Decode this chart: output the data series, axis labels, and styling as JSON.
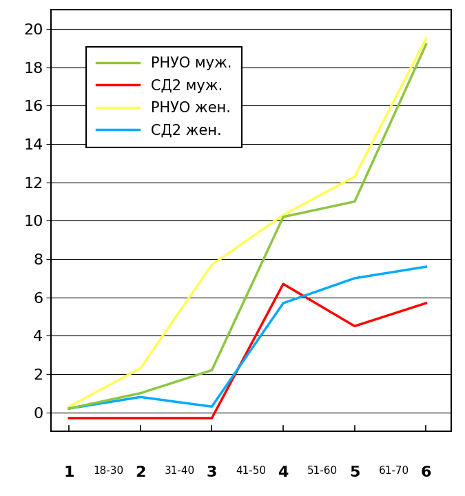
{
  "x": [
    1,
    2,
    3,
    4,
    5,
    6
  ],
  "rnuo_muz": [
    0.2,
    1.0,
    2.2,
    10.2,
    11.0,
    19.2
  ],
  "sd2_muz": [
    -0.3,
    -0.3,
    -0.3,
    6.7,
    4.5,
    5.7
  ],
  "rnuo_zhen": [
    0.3,
    2.3,
    7.7,
    10.3,
    12.3,
    19.5
  ],
  "sd2_zhen": [
    0.2,
    0.8,
    0.3,
    5.7,
    7.0,
    7.6
  ],
  "colors": {
    "rnuo_muz": "#8DC63F",
    "sd2_muz": "#FF0000",
    "rnuo_zhen": "#FFFF55",
    "sd2_zhen": "#00AAFF"
  },
  "legend_labels": [
    "РНУО муж.",
    "СД2 муж.",
    "РНУО жен.",
    "СД2 жен."
  ],
  "x_major_ticks": [
    1,
    2,
    3,
    4,
    5,
    6
  ],
  "x_between_labels": [
    [
      1.5,
      "18-30"
    ],
    [
      2.5,
      "31-40"
    ],
    [
      3.5,
      "41-50"
    ],
    [
      4.5,
      "51-60"
    ],
    [
      5.5,
      "61-70"
    ]
  ],
  "ylim": [
    -1,
    21
  ],
  "yticks": [
    0,
    2,
    4,
    6,
    8,
    10,
    12,
    14,
    16,
    18,
    20
  ],
  "xlim": [
    0.75,
    6.35
  ],
  "linewidth": 2.5,
  "bg_color": "#FFFFFF",
  "border_color": "#000000",
  "number_fontsize": 16,
  "range_fontsize": 11,
  "ytick_fontsize": 16,
  "legend_fontsize": 15
}
